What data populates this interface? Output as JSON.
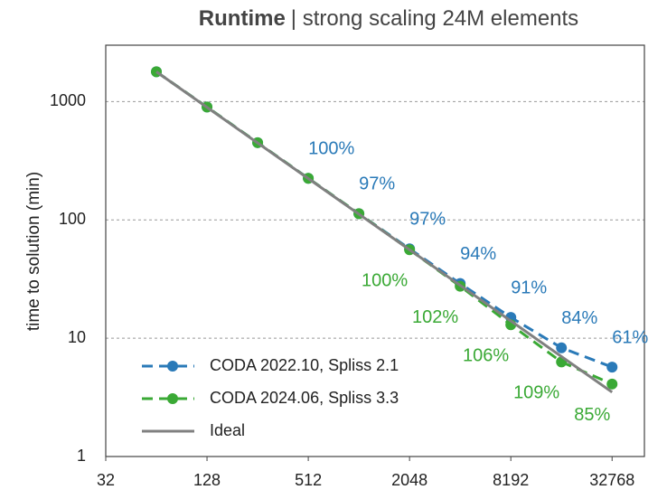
{
  "chart_data": {
    "type": "line",
    "title": [
      "Runtime",
      "| strong scaling 24M elements"
    ],
    "y_label": "time to solution (min)",
    "x": [
      64,
      128,
      256,
      512,
      1024,
      2048,
      4096,
      8192,
      16384,
      32768
    ],
    "xlim": [
      32,
      51000
    ],
    "xticks": [
      32,
      128,
      512,
      2048,
      8192,
      32768
    ],
    "ylim": [
      1,
      3000
    ],
    "yticks": [
      1,
      10,
      100,
      1000
    ],
    "log_x": true,
    "log_y": true,
    "grid": true,
    "legend": "lower left",
    "series": [
      {
        "name": "CODA 2022.10, Spliss 2.1",
        "color": "#2a7ab8",
        "dashed": true,
        "markers": true,
        "values": [
          1790,
          900,
          450,
          225,
          113,
          57,
          29,
          15,
          8.3,
          5.7
        ],
        "annotations": [
          null,
          null,
          null,
          "100%",
          "97%",
          "97%",
          "94%",
          "91%",
          "84%",
          "61%"
        ]
      },
      {
        "name": "CODA 2024.06, Spliss 3.3",
        "color": "#3aa935",
        "dashed": true,
        "markers": true,
        "values": [
          1790,
          900,
          450,
          225,
          113,
          56,
          27.5,
          13,
          6.3,
          4.1
        ],
        "annotations": [
          null,
          null,
          null,
          null,
          null,
          "100%",
          "102%",
          "106%",
          "109%",
          "85%"
        ]
      },
      {
        "name": "Ideal",
        "color": "#808080",
        "dashed": false,
        "markers": false,
        "x": [
          64,
          32768
        ],
        "values": [
          1790,
          3.5
        ]
      }
    ]
  }
}
